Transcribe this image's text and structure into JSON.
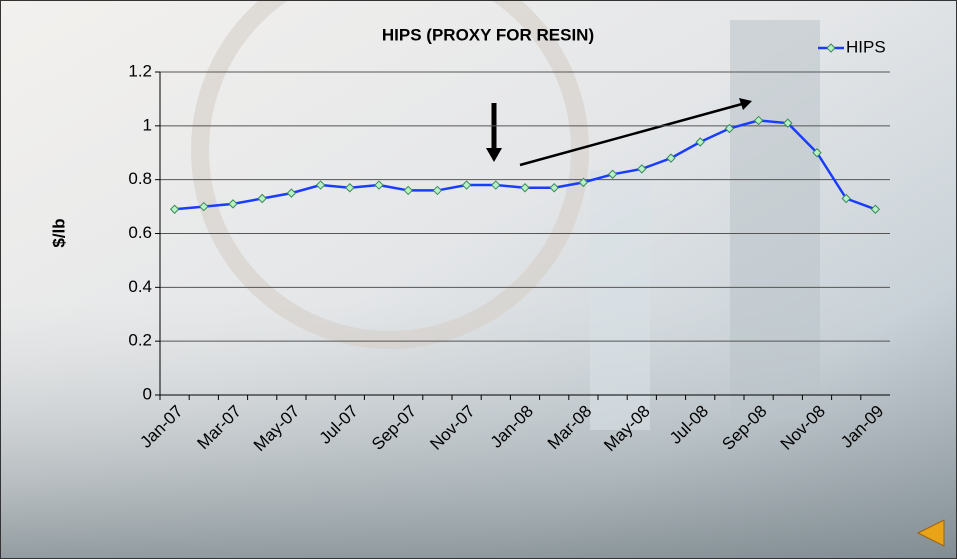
{
  "chart_data": {
    "type": "line",
    "title": "HIPS (PROXY FOR RESIN)",
    "y_label": "$/lb",
    "categories": [
      "Jan-07",
      null,
      "Mar-07",
      null,
      "May-07",
      null,
      "Jul-07",
      null,
      "Sep-07",
      null,
      "Nov-07",
      null,
      "Jan-08",
      null,
      "Mar-08",
      null,
      "May-08",
      null,
      "Jul-08",
      null,
      "Sep-08",
      null,
      "Nov-08",
      null,
      "Jan-09"
    ],
    "series": [
      {
        "name": "HIPS",
        "color": "#1a3cff",
        "marker_color": "#b8f0c8",
        "values": [
          0.69,
          0.7,
          0.71,
          0.73,
          0.75,
          0.78,
          0.77,
          0.78,
          0.76,
          0.76,
          0.78,
          0.78,
          0.77,
          0.77,
          0.79,
          0.82,
          0.84,
          0.88,
          0.94,
          0.99,
          1.02,
          1.01,
          0.9,
          0.73,
          0.69
        ]
      }
    ],
    "ylim": [
      0,
      1.2
    ],
    "yticks": [
      0,
      0.2,
      0.4,
      0.6,
      0.8,
      1,
      1.2
    ],
    "grid": true,
    "legend": "top-right"
  }
}
